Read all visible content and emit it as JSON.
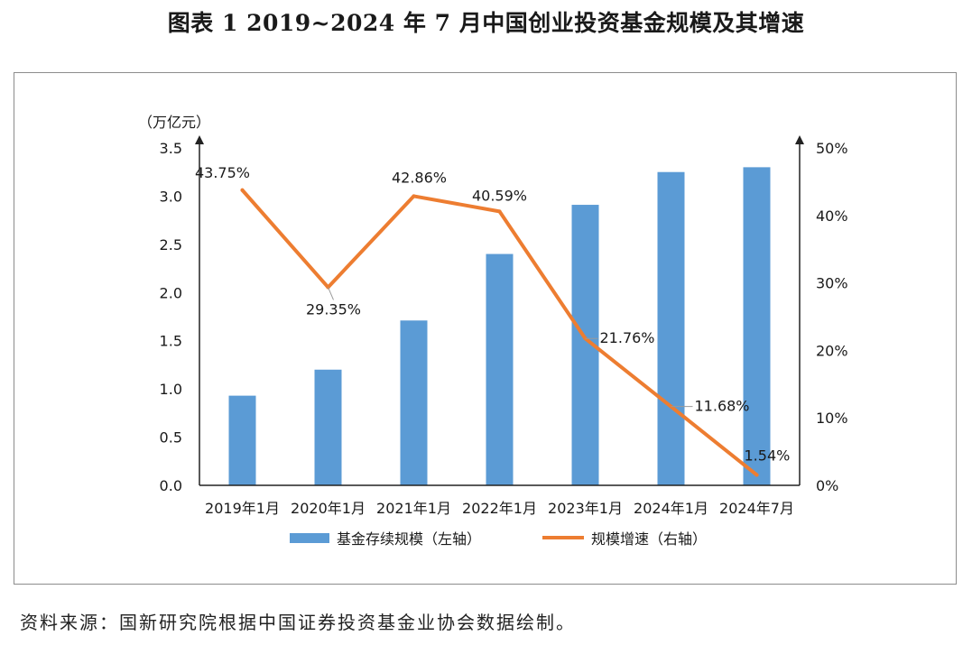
{
  "figure": {
    "title": "图表 1  2019~2024 年 7 月中国创业投资基金规模及其增速",
    "source_note": "资料来源：国新研究院根据中国证券投资基金业协会数据绘制。"
  },
  "chart_data": {
    "type": "bar",
    "title": "",
    "categories": [
      "2019年1月",
      "2020年1月",
      "2021年1月",
      "2022年1月",
      "2023年1月",
      "2024年1月",
      "2024年7月"
    ],
    "ylabel": "（万亿元）",
    "y_left": {
      "min": 0,
      "max": 3.5,
      "ticks": [
        "0.0",
        "0.5",
        "1.0",
        "1.5",
        "2.0",
        "2.5",
        "3.0",
        "3.5"
      ]
    },
    "y_right": {
      "min": 0,
      "max": 50,
      "ticks": [
        "0%",
        "10%",
        "20%",
        "30%",
        "40%",
        "50%"
      ]
    },
    "grid": false,
    "legend_position": "bottom",
    "series": [
      {
        "name": "基金存续规模（左轴）",
        "type": "bar",
        "axis": "left",
        "color": "#5b9bd5",
        "values": [
          0.93,
          1.2,
          1.71,
          2.4,
          2.91,
          3.25,
          3.3
        ]
      },
      {
        "name": "规模增速（右轴）",
        "type": "line",
        "axis": "right",
        "color": "#ed7d31",
        "values": [
          43.75,
          29.35,
          42.86,
          40.59,
          21.76,
          11.68,
          1.54
        ],
        "labels": [
          "43.75%",
          "29.35%",
          "42.86%",
          "40.59%",
          "21.76%",
          "11.68%",
          "1.54%"
        ]
      }
    ]
  }
}
